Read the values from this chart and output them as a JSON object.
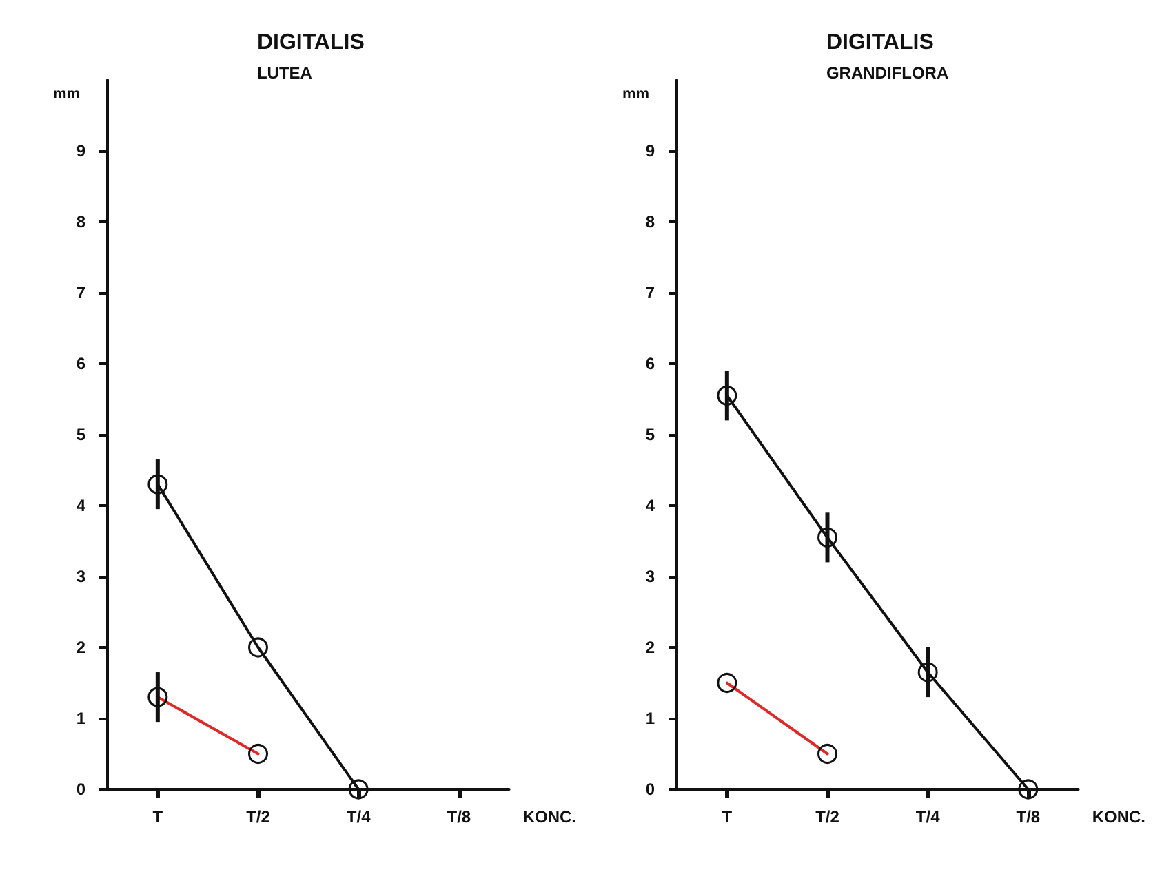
{
  "chart_data": [
    {
      "type": "line",
      "title": "DIGITALIS",
      "subtitle": "LUTEA",
      "xlabel": "KONC.",
      "ylabel": "mm",
      "categories": [
        "T",
        "T/2",
        "T/4",
        "T/8"
      ],
      "ylim": [
        0,
        10
      ],
      "yticks": [
        0,
        1,
        2,
        3,
        4,
        5,
        6,
        7,
        8,
        9
      ],
      "grid": false,
      "marker": "circle",
      "line_style": "solid",
      "series": [
        {
          "color": "#111111",
          "values": [
            4.3,
            2.0,
            0,
            null
          ],
          "errors": [
            0.35,
            null,
            null,
            null
          ]
        },
        {
          "color": "#e02828",
          "values": [
            1.3,
            0.5,
            null,
            null
          ],
          "errors": [
            0.35,
            null,
            null,
            null
          ]
        }
      ]
    },
    {
      "type": "line",
      "title": "DIGITALIS",
      "subtitle": "GRANDIFLORA",
      "xlabel": "KONC.",
      "ylabel": "mm",
      "categories": [
        "T",
        "T/2",
        "T/4",
        "T/8"
      ],
      "ylim": [
        0,
        10
      ],
      "yticks": [
        0,
        1,
        2,
        3,
        4,
        5,
        6,
        7,
        8,
        9
      ],
      "grid": false,
      "marker": "circle",
      "line_style": "solid",
      "series": [
        {
          "color": "#111111",
          "values": [
            5.55,
            3.55,
            1.65,
            0
          ],
          "errors": [
            0.35,
            0.35,
            0.35,
            null
          ]
        },
        {
          "color": "#e02828",
          "values": [
            1.5,
            0.5,
            null,
            null
          ],
          "errors": [
            null,
            null,
            null,
            null
          ]
        }
      ]
    }
  ]
}
